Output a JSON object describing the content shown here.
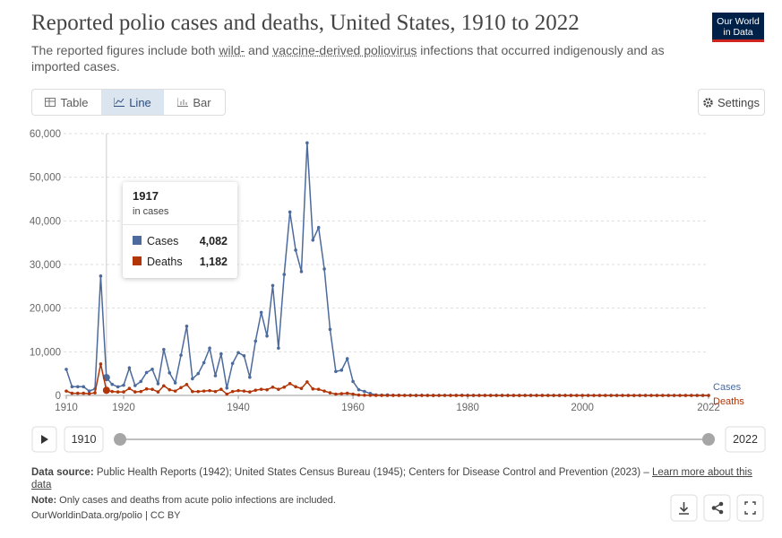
{
  "header": {
    "title": "Reported polio cases and deaths, United States, 1910 to 2022",
    "subtitle": [
      "The reported figures include both ",
      "wild-",
      " and ",
      "vaccine-derived poliovirus",
      " infections that occurred indigenously and as imported cases."
    ],
    "logo": [
      "Our World",
      "in Data"
    ]
  },
  "controls": {
    "tabs": [
      "Table",
      "Line",
      "Bar"
    ],
    "settings": "Settings"
  },
  "chart_data": {
    "type": "line",
    "x": [
      1910,
      1911,
      1912,
      1913,
      1914,
      1915,
      1916,
      1917,
      1918,
      1919,
      1920,
      1921,
      1922,
      1923,
      1924,
      1925,
      1926,
      1927,
      1928,
      1929,
      1930,
      1931,
      1932,
      1933,
      1934,
      1935,
      1936,
      1937,
      1938,
      1939,
      1940,
      1941,
      1942,
      1943,
      1944,
      1945,
      1946,
      1947,
      1948,
      1949,
      1950,
      1951,
      1952,
      1953,
      1954,
      1955,
      1956,
      1957,
      1958,
      1959,
      1960,
      1961,
      1962,
      1963,
      1964,
      1965,
      1966,
      1967,
      1968,
      1969,
      1970,
      1971,
      1972,
      1973,
      1974,
      1975,
      1976,
      1977,
      1978,
      1979,
      1980,
      1981,
      1982,
      1983,
      1984,
      1985,
      1986,
      1987,
      1988,
      1989,
      1990,
      1991,
      1992,
      1993,
      1994,
      1995,
      1996,
      1997,
      1998,
      1999,
      2000,
      2001,
      2002,
      2003,
      2004,
      2005,
      2006,
      2007,
      2008,
      2009,
      2010,
      2011,
      2012,
      2013,
      2014,
      2015,
      2016,
      2017,
      2018,
      2019,
      2020,
      2021,
      2022
    ],
    "series": [
      {
        "name": "Cases",
        "color": "#4c6a9c",
        "values": [
          5983,
          2000,
          2000,
          2000,
          1000,
          1500,
          27363,
          4082,
          2543,
          1967,
          2338,
          6301,
          2255,
          3200,
          5262,
          6000,
          2700,
          10533,
          5169,
          2882,
          9220,
          15872,
          3820,
          5000,
          7500,
          10839,
          4523,
          9511,
          1705,
          7343,
          9804,
          9086,
          4167,
          12450,
          19029,
          13624,
          25191,
          10827,
          27726,
          42033,
          33300,
          28386,
          57879,
          35592,
          38476,
          28985,
          15140,
          5485,
          5787,
          8425,
          3190,
          1312,
          910,
          449,
          122,
          72,
          113,
          41,
          53,
          20,
          33,
          21,
          31,
          8,
          7,
          8,
          14,
          18,
          15,
          34,
          9,
          10,
          12,
          13,
          9,
          8,
          10,
          9,
          9,
          11,
          6,
          10,
          6,
          4,
          8,
          7,
          7,
          5,
          3,
          2,
          2,
          0,
          0,
          0,
          0,
          1,
          0,
          0,
          0,
          1,
          0,
          0,
          0,
          0,
          0,
          0,
          0,
          0,
          0,
          0,
          0,
          0,
          1
        ]
      },
      {
        "name": "Deaths",
        "color": "#b13507",
        "values": [
          1000,
          500,
          500,
          500,
          400,
          600,
          7200,
          1182,
          900,
          800,
          800,
          1600,
          800,
          900,
          1500,
          1400,
          800,
          2200,
          1300,
          1000,
          1800,
          2500,
          900,
          900,
          1000,
          1100,
          900,
          1400,
          300,
          900,
          1100,
          1000,
          800,
          1200,
          1400,
          1300,
          1900,
          1400,
          1900,
          2700,
          2000,
          1600,
          3100,
          1500,
          1400,
          1000,
          600,
          300,
          400,
          500,
          300,
          100,
          50,
          20,
          10,
          5,
          9,
          3,
          3,
          2,
          2,
          1,
          1,
          0,
          1,
          0,
          0,
          1,
          0,
          0,
          0,
          0,
          0,
          0,
          0,
          0,
          0,
          0,
          0,
          0,
          0,
          0,
          0,
          0,
          0,
          0,
          0,
          0,
          0,
          0,
          0,
          0,
          0,
          0,
          0,
          0,
          0,
          0,
          0,
          0,
          0,
          0,
          0,
          0,
          0,
          0,
          0,
          0,
          0,
          0,
          0,
          0,
          0
        ]
      }
    ],
    "xlim": [
      1910,
      2022
    ],
    "xticks": [
      1910,
      1920,
      1940,
      1960,
      1980,
      2000,
      2022
    ],
    "ylim": [
      0,
      60000
    ],
    "yticks": [
      0,
      {
        "value": 10000,
        "label": "10,000"
      },
      {
        "value": 20000,
        "label": "20,000"
      },
      {
        "value": 30000,
        "label": "30,000"
      },
      {
        "value": 40000,
        "label": "40,000"
      },
      {
        "value": 50000,
        "label": "50,000"
      },
      {
        "value": 60000,
        "label": "60,000"
      }
    ],
    "grid": true,
    "tooltip": {
      "subtitle": "in cases",
      "values": [
        "4,082",
        "1,182"
      ]
    }
  },
  "footer": {
    "source_label": "Data source:",
    "source": "Public Health Reports (1942); United States Census Bureau (1945); Centers for Disease Control and Prevention (2023) – ",
    "learn_more": "Learn more about this data",
    "note_label": "Note:",
    "note": "Only cases and deaths from acute polio infections are included.",
    "url": "OurWorldinData.org/polio | CC BY"
  }
}
